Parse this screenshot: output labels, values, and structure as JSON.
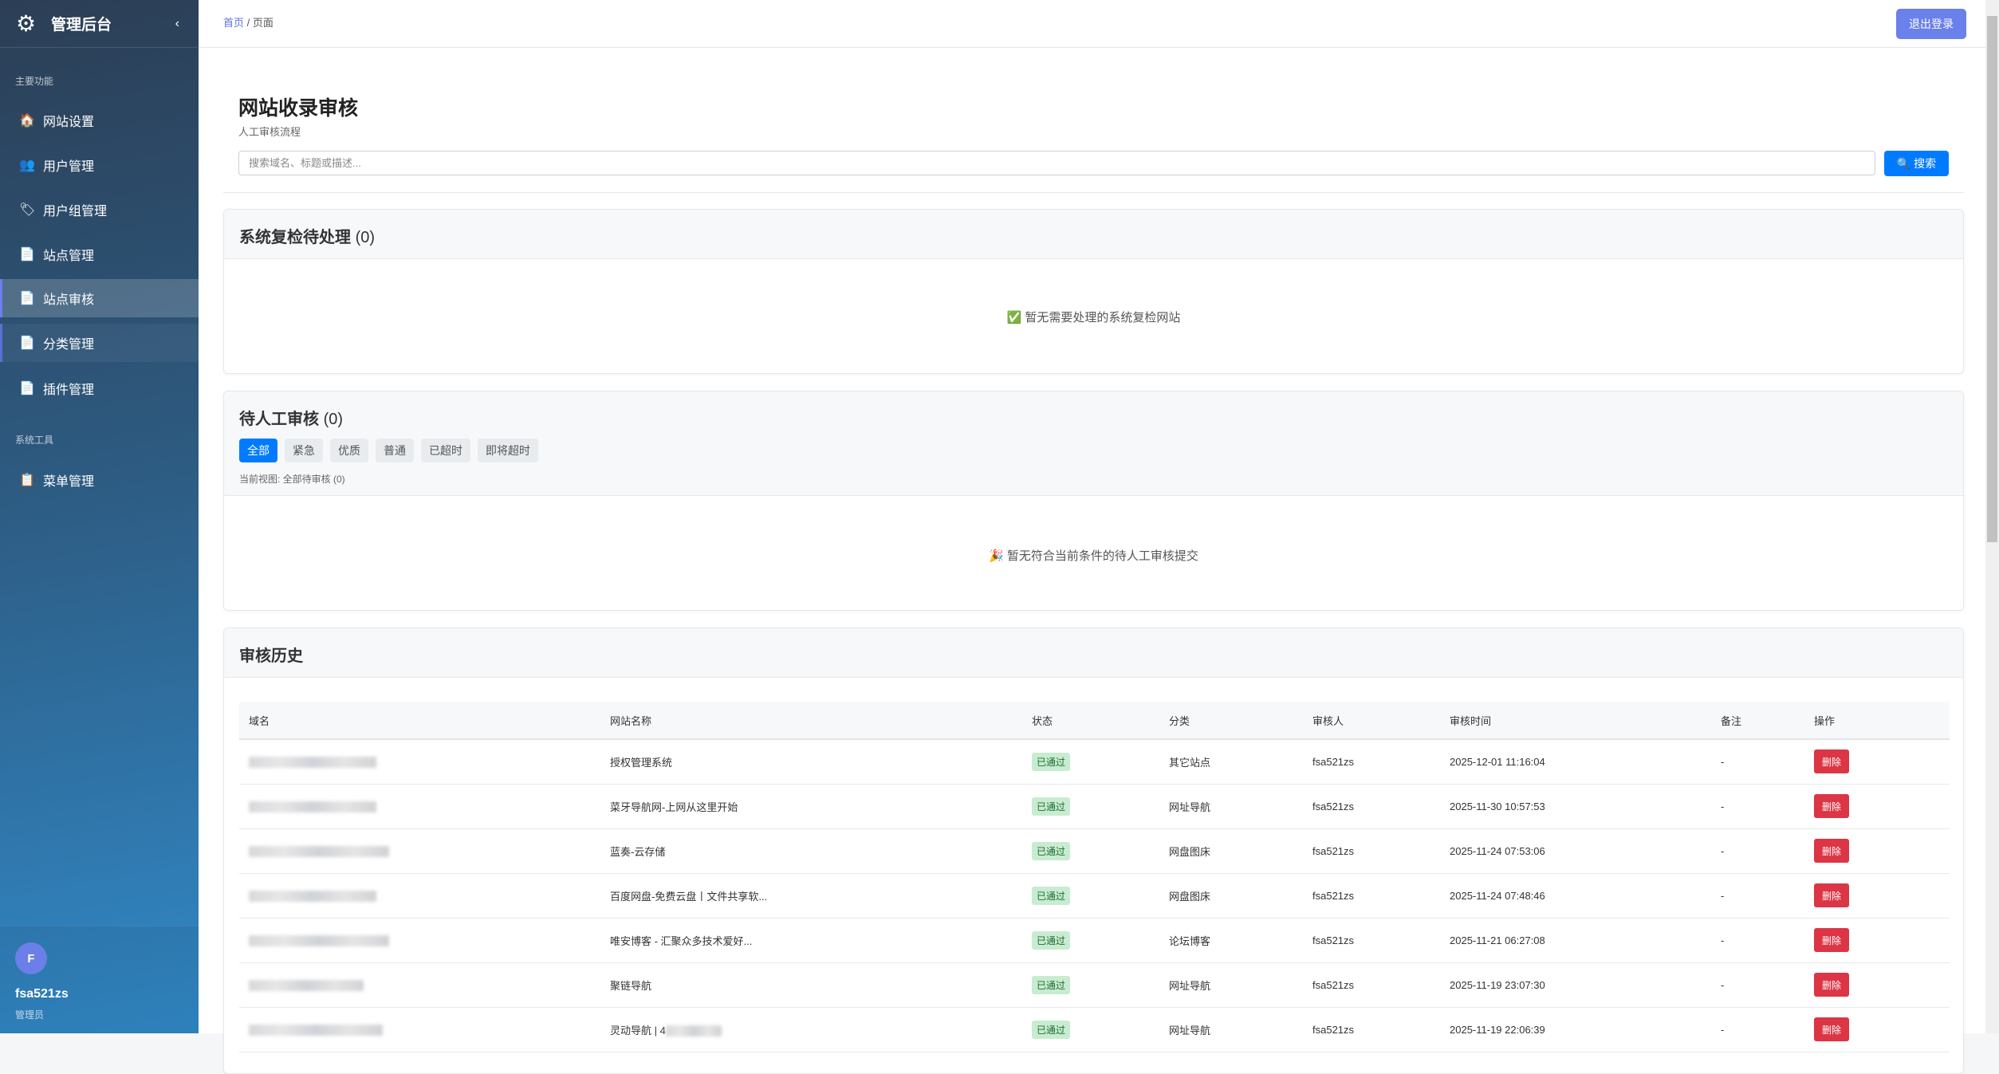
{
  "sidebar": {
    "title": "管理后台",
    "logo_icon": "gear-icon",
    "collapse_icon": "‹",
    "section_main": "主要功能",
    "section_tools": "系统工具",
    "items": [
      {
        "label": "网站设置",
        "icon": "🏠"
      },
      {
        "label": "用户管理",
        "icon": "👥"
      },
      {
        "label": "用户组管理",
        "icon": "🏷"
      },
      {
        "label": "站点管理",
        "icon": "📄"
      },
      {
        "label": "站点审核",
        "icon": "📄",
        "active": true
      },
      {
        "label": "分类管理",
        "icon": "📄"
      },
      {
        "label": "插件管理",
        "icon": "📄"
      }
    ],
    "tool_items": [
      {
        "label": "菜单管理",
        "icon": "📋"
      }
    ],
    "user": {
      "initial": "F",
      "name": "fsa521zs",
      "role": "管理员"
    }
  },
  "header": {
    "breadcrumb_home": "首页",
    "breadcrumb_sep": "/",
    "breadcrumb_current": "页面",
    "logout": "退出登录"
  },
  "page": {
    "title": "网站收录审核",
    "subtitle": "人工审核流程",
    "search_placeholder": "搜索域名、标题或描述...",
    "search_button": "🔍 搜索"
  },
  "recheck": {
    "title": "系统复检待处理",
    "count": "(0)",
    "empty": "✅ 暂无需要处理的系统复检网站"
  },
  "manual": {
    "title": "待人工审核",
    "count": "(0)",
    "filters": [
      "全部",
      "紧急",
      "优质",
      "普通",
      "已超时",
      "即将超时"
    ],
    "current_view": "当前视图: 全部待审核 (0)",
    "empty": "🎉 暂无符合当前条件的待人工审核提交"
  },
  "history": {
    "title": "审核历史",
    "columns": [
      "域名",
      "网站名称",
      "状态",
      "分类",
      "审核人",
      "审核时间",
      "备注",
      "操作"
    ],
    "rows": [
      {
        "name": "授权管理系统",
        "status": "已通过",
        "category": "其它站点",
        "reviewer": "fsa521zs",
        "time": "2025-12-01 11:16:04",
        "note": "-",
        "action": "删除"
      },
      {
        "name": "菜牙导航网-上网从这里开始",
        "status": "已通过",
        "category": "网址导航",
        "reviewer": "fsa521zs",
        "time": "2025-11-30 10:57:53",
        "note": "-",
        "action": "删除"
      },
      {
        "name": "蓝奏-云存储",
        "status": "已通过",
        "category": "网盘图床",
        "reviewer": "fsa521zs",
        "time": "2025-11-24 07:53:06",
        "note": "-",
        "action": "删除"
      },
      {
        "name": "百度网盘-免费云盘丨文件共享软...",
        "status": "已通过",
        "category": "网盘图床",
        "reviewer": "fsa521zs",
        "time": "2025-11-24 07:48:46",
        "note": "-",
        "action": "删除"
      },
      {
        "name": "唯安博客 - 汇聚众多技术爱好...",
        "status": "已通过",
        "category": "论坛博客",
        "reviewer": "fsa521zs",
        "time": "2025-11-21 06:27:08",
        "note": "-",
        "action": "删除"
      },
      {
        "name": "聚链导航",
        "status": "已通过",
        "category": "网址导航",
        "reviewer": "fsa521zs",
        "time": "2025-11-19 23:07:30",
        "note": "-",
        "action": "删除"
      },
      {
        "name": "灵动导航 | 4",
        "status": "已通过",
        "category": "网址导航",
        "reviewer": "fsa521zs",
        "time": "2025-11-19 22:06:39",
        "note": "-",
        "action": "删除"
      }
    ]
  }
}
